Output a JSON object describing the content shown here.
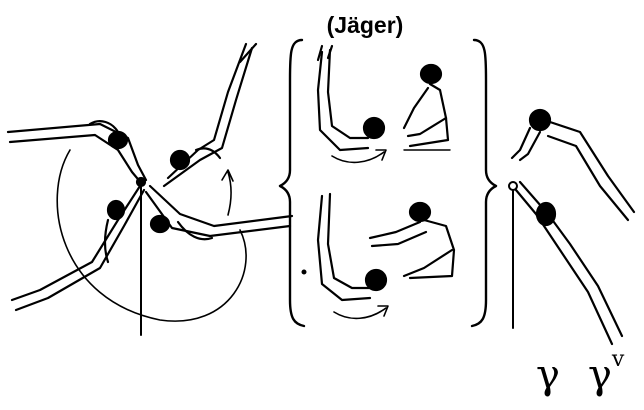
{
  "title": "(Jäger)",
  "symbols": {
    "gamma": "γ",
    "gamma_v_base": "γ",
    "gamma_v_mark": "v"
  }
}
